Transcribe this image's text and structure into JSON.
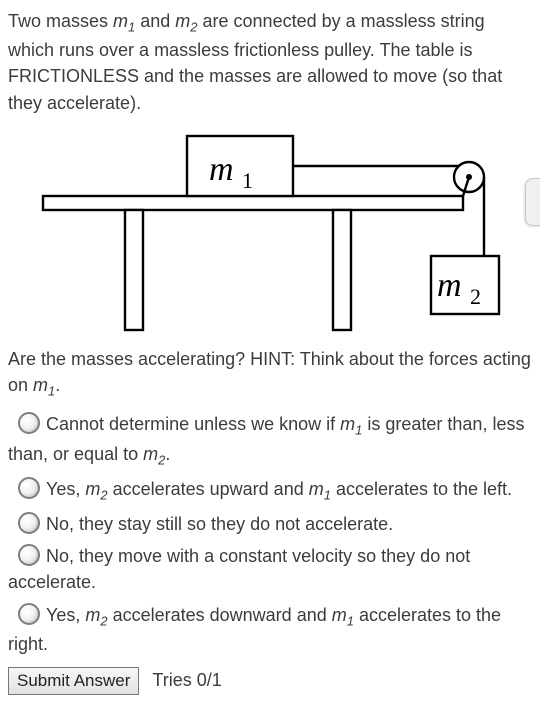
{
  "text": {
    "intro_part1": "Two masses ",
    "intro_m1": "m",
    "intro_m1_sub": "1",
    "intro_part2": " and ",
    "intro_m2": "m",
    "intro_m2_sub": "2",
    "intro_part3": " are connected by a massless string which runs over a massless frictionless pulley. The table is FRICTIONLESS and the masses are allowed to move (so that they accelerate).",
    "prompt_part1": "Are the masses accelerating? HINT: Think about the forces acting on ",
    "prompt_m1": "m",
    "prompt_m1_sub": "1",
    "prompt_part2": "."
  },
  "figure": {
    "m1_label": "m",
    "m1_sub": "1",
    "m2_label": "m",
    "m2_sub": "2",
    "colors": {
      "stroke": "#000000",
      "fill": "#ffffff",
      "bg": "#ffffff"
    },
    "font_family": "Georgia, 'Times New Roman', serif",
    "label_fontsize": 34
  },
  "options": [
    {
      "parts": [
        {
          "t": "Cannot determine unless we know if "
        },
        {
          "t": "m",
          "ital": true
        },
        {
          "t": "1",
          "sub": true
        },
        {
          "t": " is greater than, less than, or equal to "
        },
        {
          "t": "m",
          "ital": true
        },
        {
          "t": "2",
          "sub": true
        },
        {
          "t": "."
        }
      ]
    },
    {
      "parts": [
        {
          "t": "Yes, "
        },
        {
          "t": "m",
          "ital": true
        },
        {
          "t": "2",
          "sub": true
        },
        {
          "t": " accelerates upward and "
        },
        {
          "t": "m",
          "ital": true
        },
        {
          "t": "1",
          "sub": true
        },
        {
          "t": " accelerates to the left."
        }
      ]
    },
    {
      "parts": [
        {
          "t": "No, they stay still so they do not accelerate."
        }
      ]
    },
    {
      "parts": [
        {
          "t": "No, they move with a constant velocity so they do not accelerate."
        }
      ]
    },
    {
      "parts": [
        {
          "t": "Yes, "
        },
        {
          "t": "m",
          "ital": true
        },
        {
          "t": "2",
          "sub": true
        },
        {
          "t": " accelerates downward and "
        },
        {
          "t": "m",
          "ital": true
        },
        {
          "t": "1",
          "sub": true
        },
        {
          "t": " accelerates to the right."
        }
      ]
    }
  ],
  "submit": {
    "label": "Submit Answer"
  },
  "tries": {
    "label": "Tries 0/1"
  }
}
